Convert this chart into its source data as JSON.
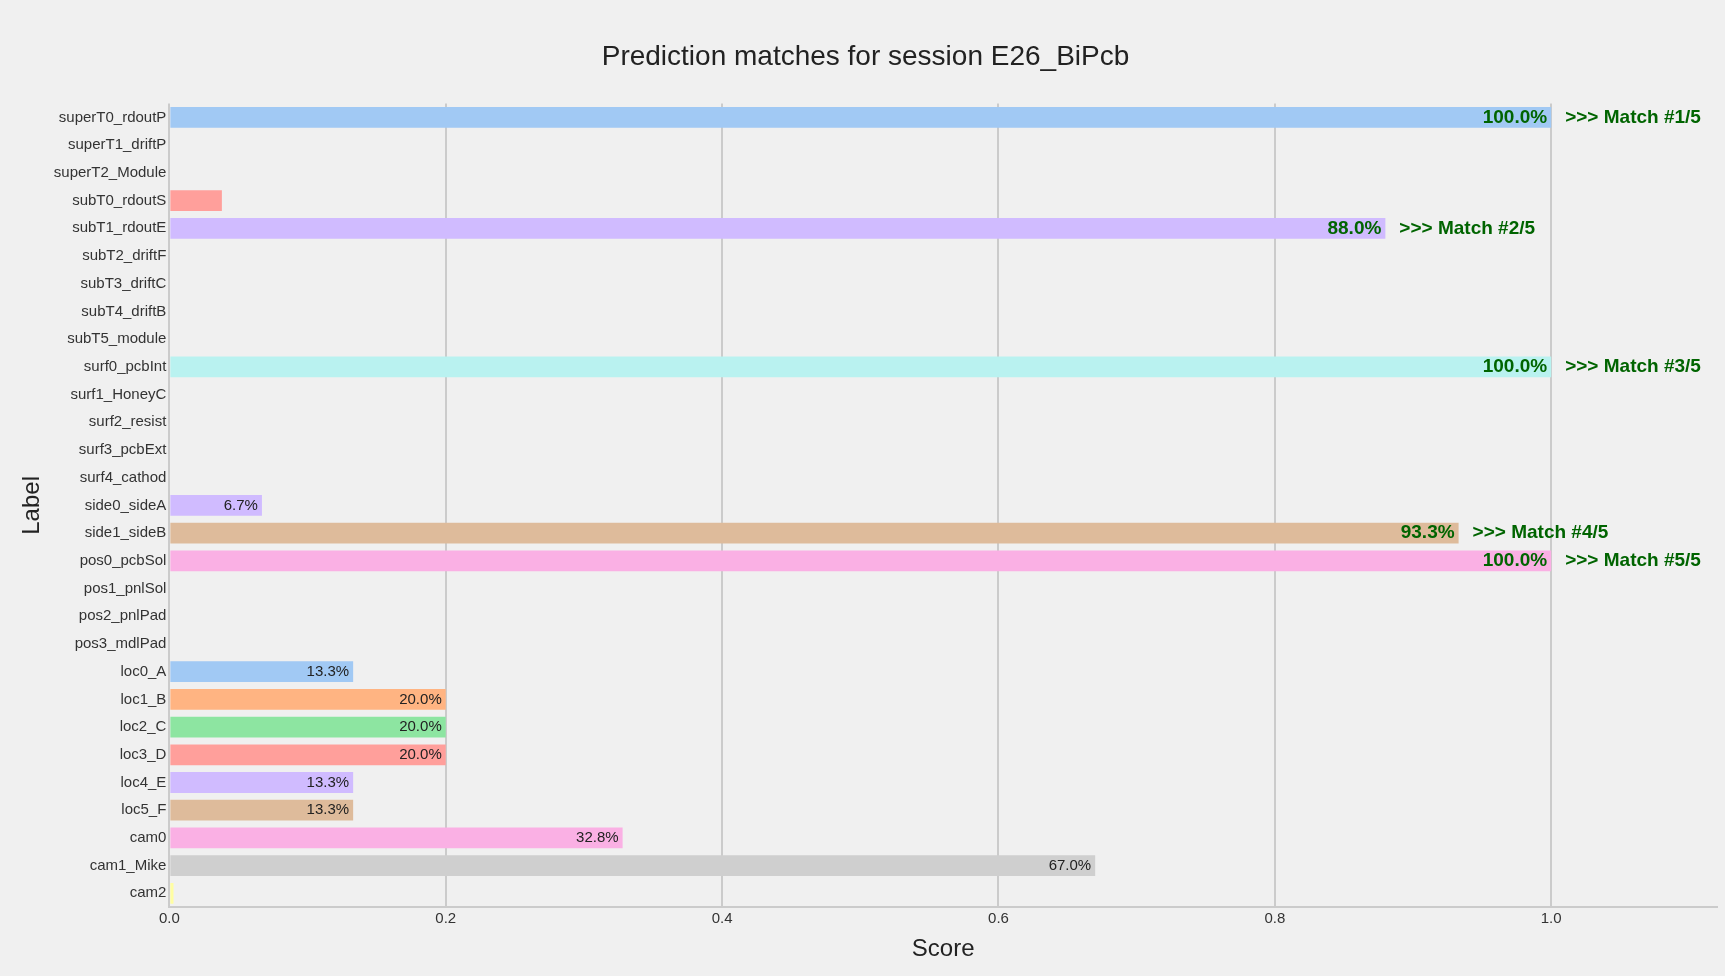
{
  "chart_data": {
    "type": "bar",
    "orientation": "horizontal",
    "title": "Prediction matches for session E26_BiPcb",
    "xlabel": "Score",
    "ylabel": "Label",
    "categories": [
      "superT0_rdoutP",
      "superT1_driftP",
      "superT2_Module",
      "subT0_rdoutS",
      "subT1_rdoutE",
      "subT2_driftF",
      "subT3_driftC",
      "subT4_driftB",
      "subT5_module",
      "surf0_pcbInt",
      "surf1_HoneyC",
      "surf2_resist",
      "surf3_pcbExt",
      "surf4_cathod",
      "side0_sideA",
      "side1_sideB",
      "pos0_pcbSol",
      "pos1_pnlSol",
      "pos2_pnlPad",
      "pos3_mdlPad",
      "loc0_A",
      "loc1_B",
      "loc2_C",
      "loc3_D",
      "loc4_E",
      "loc5_F",
      "cam0",
      "cam1_Mike",
      "cam2"
    ],
    "values": [
      1.0,
      0,
      0,
      0.038,
      0.88,
      0,
      0,
      0,
      0,
      1.0,
      0,
      0,
      0,
      0,
      0.067,
      0.933,
      1.0,
      0,
      0,
      0,
      0.133,
      0.2,
      0.2,
      0.2,
      0.133,
      0.133,
      0.328,
      0.67,
      0.003
    ],
    "value_labels": [
      "100.0%",
      null,
      null,
      null,
      "88.0%",
      null,
      null,
      null,
      null,
      "100.0%",
      null,
      null,
      null,
      null,
      "6.7%",
      "93.3%",
      "100.0%",
      null,
      null,
      null,
      "13.3%",
      "20.0%",
      "20.0%",
      "20.0%",
      "13.3%",
      "13.3%",
      "32.8%",
      "67.0%",
      null
    ],
    "colors": [
      "#a1c9f4",
      "#ffb482",
      "#8de5a1",
      "#ff9f9b",
      "#d0bbff",
      "#debb9b",
      "#fab0e4",
      "#cfcfcf",
      "#fffea3",
      "#b9f2f0",
      "#a1c9f4",
      "#ffb482",
      "#8de5a1",
      "#ff9f9b",
      "#d0bbff",
      "#debb9b",
      "#fab0e4",
      "#cfcfcf",
      "#fffea3",
      "#b9f2f0",
      "#a1c9f4",
      "#ffb482",
      "#8de5a1",
      "#ff9f9b",
      "#d0bbff",
      "#debb9b",
      "#fab0e4",
      "#cfcfcf",
      "#fffea3"
    ],
    "xlim": [
      0,
      1.12
    ],
    "xticks": [
      {
        "value": 0,
        "label": "0.0"
      },
      0.2,
      0.4,
      0.6,
      0.8,
      {
        "value": 1,
        "label": "1.0"
      }
    ],
    "grid": "x",
    "annotations": [
      {
        "text": ">>> Match #1/5",
        "x": 1.0,
        "y": "superT0_rdoutP"
      },
      {
        "text": ">>> Match #2/5",
        "x": 0.88,
        "y": "subT1_rdoutE"
      },
      {
        "text": ">>> Match #3/5",
        "x": 1.0,
        "y": "surf0_pcbInt"
      },
      {
        "text": ">>> Match #4/5",
        "x": 0.933,
        "y": "side1_sideB"
      },
      {
        "text": ">>> Match #5/5",
        "x": 1.0,
        "y": "pos0_pcbSol"
      }
    ]
  }
}
